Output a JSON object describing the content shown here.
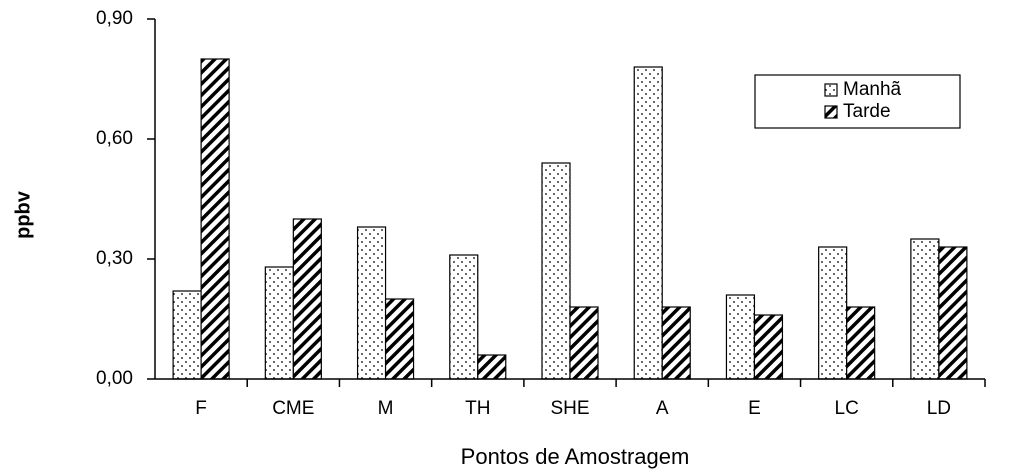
{
  "chart_data": {
    "type": "bar",
    "xlabel": "Pontos de Amostragem",
    "ylabel": "ppbv",
    "categories": [
      "F",
      "CME",
      "M",
      "TH",
      "SHE",
      "A",
      "E",
      "LC",
      "LD"
    ],
    "series": [
      {
        "name": "Manhã",
        "color": "#000000",
        "pattern": "dots",
        "values": [
          0.22,
          0.28,
          0.38,
          0.31,
          0.54,
          0.78,
          0.21,
          0.33,
          0.35
        ]
      },
      {
        "name": "Tarde",
        "color": "#000000",
        "pattern": "hatch",
        "values": [
          0.8,
          0.4,
          0.2,
          0.06,
          0.18,
          0.18,
          0.16,
          0.18,
          0.33
        ]
      }
    ],
    "ylim": [
      0,
      0.9
    ],
    "yticks": [
      {
        "value": 0,
        "label": "0,00"
      },
      {
        "value": 0.3,
        "label": "0,30"
      },
      {
        "value": 0.6,
        "label": "0,60"
      },
      {
        "value": 0.9,
        "label": "0,90"
      }
    ],
    "grid": false,
    "legend": "upper right"
  }
}
